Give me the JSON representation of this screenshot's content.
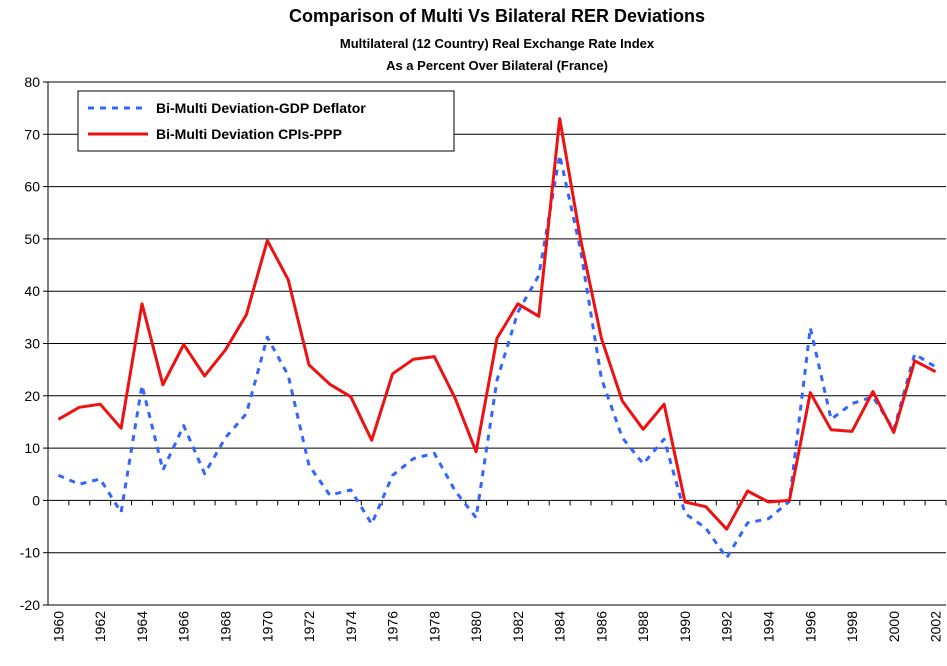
{
  "chart_data": {
    "type": "line",
    "title": "Comparison of Multi Vs Bilateral RER Deviations",
    "subtitle": [
      "Multilateral (12 Country) Real Exchange Rate Index",
      "As a Percent Over Bilateral (France)"
    ],
    "categories": [
      "1960",
      null,
      "1962",
      null,
      "1964",
      null,
      "1966",
      null,
      "1968",
      null,
      "1970",
      null,
      "1972",
      null,
      "1974",
      null,
      "1976",
      null,
      "1978",
      null,
      "1980",
      null,
      "1982",
      null,
      "1984",
      null,
      "1986",
      null,
      "1988",
      null,
      "1990",
      null,
      "1992",
      null,
      "1994",
      null,
      "1996",
      null,
      "1998",
      null,
      "2000",
      null,
      "2002"
    ],
    "series": [
      {
        "name": "Bi-Multi Deviation-GDP Deflator",
        "color": "#3366ff",
        "dashed": true,
        "values": [
          4.8,
          3.1,
          4.1,
          -2.3,
          22.0,
          5.8,
          14.3,
          5.1,
          12.0,
          16.6,
          31.2,
          23.9,
          6.7,
          1.0,
          2.0,
          -4.5,
          4.8,
          8.0,
          9.0,
          1.8,
          -3.3,
          23.0,
          36.0,
          43.0,
          66.0,
          48.0,
          23.3,
          12.0,
          7.0,
          11.7,
          -2.5,
          -5.3,
          -11.0,
          -4.3,
          -3.5,
          -0.2,
          33.0,
          15.5,
          18.5,
          19.8,
          13.5,
          28.0,
          25.5
        ]
      },
      {
        "name": "Bi-Multi Deviation CPIs-PPP",
        "color": "#ee1111",
        "dashed": false,
        "values": [
          15.5,
          17.8,
          18.4,
          13.8,
          37.6,
          22.1,
          29.8,
          23.8,
          28.8,
          35.5,
          49.7,
          42.2,
          25.9,
          22.2,
          19.8,
          11.5,
          24.2,
          27.0,
          27.5,
          19.5,
          9.3,
          31.0,
          37.6,
          35.2,
          73.0,
          50.0,
          31.0,
          19.0,
          13.6,
          18.4,
          -0.3,
          -1.2,
          -5.5,
          1.8,
          -0.3,
          0,
          20.6,
          13.5,
          13.2,
          20.8,
          13.0,
          26.7,
          24.6
        ]
      }
    ],
    "ylim": [
      -20,
      80
    ],
    "yticks": [
      -20,
      -10,
      0,
      10,
      20,
      30,
      40,
      50,
      60,
      70,
      80
    ],
    "grid": true,
    "legend": "top-left"
  }
}
